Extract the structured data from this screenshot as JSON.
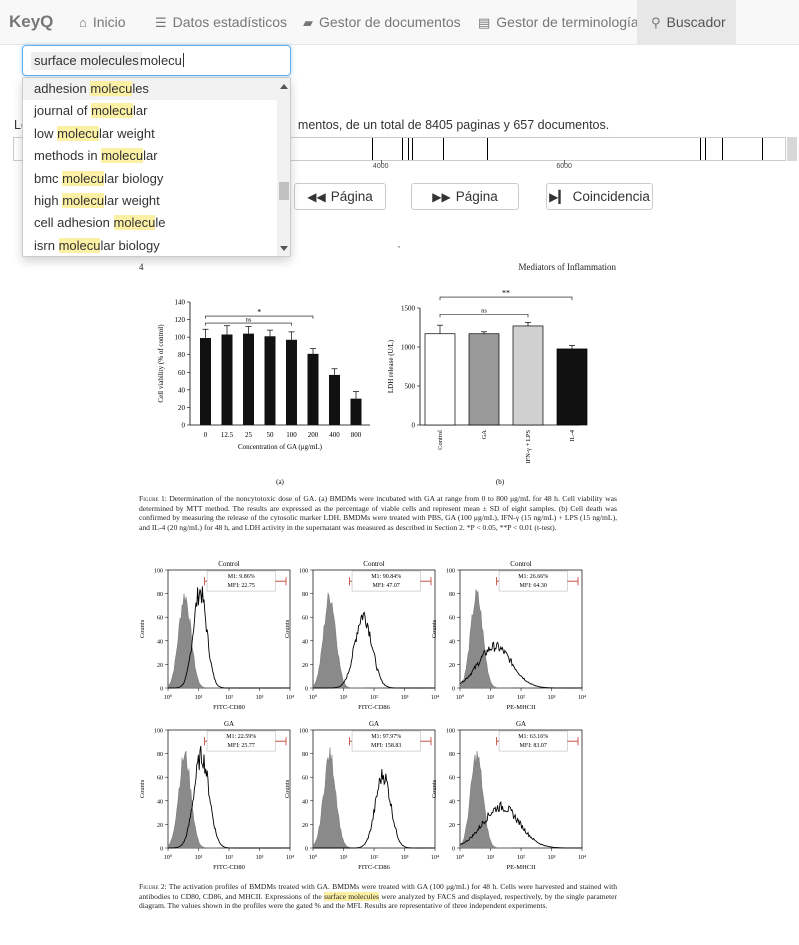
{
  "navbar": {
    "brand": "KeyQ",
    "items": [
      {
        "label": "Inicio",
        "icon": "home-icon",
        "glyph": "⌂"
      },
      {
        "label": "Datos estadísticos",
        "icon": "list-icon",
        "glyph": "☰"
      },
      {
        "label": "Gestor de documentos",
        "icon": "folder-icon",
        "glyph": "▰"
      },
      {
        "label": "Gestor de terminología",
        "icon": "file-icon",
        "glyph": "▤"
      },
      {
        "label": "Buscador",
        "icon": "search-icon",
        "glyph": "⚲",
        "active": true
      }
    ]
  },
  "search": {
    "token": "surface molecules",
    "typed": "molecu"
  },
  "suggestions": [
    {
      "pre": "adhesion ",
      "match": "molecu",
      "post": "les"
    },
    {
      "pre": "journal of ",
      "match": "molecu",
      "post": "lar"
    },
    {
      "pre": "low ",
      "match": "molecu",
      "post": "lar weight"
    },
    {
      "pre": "methods in ",
      "match": "molecu",
      "post": "lar"
    },
    {
      "pre": "bmc ",
      "match": "molecu",
      "post": "lar biology"
    },
    {
      "pre": "high ",
      "match": "molecu",
      "post": "lar weight"
    },
    {
      "pre": "cell adhesion ",
      "match": "molecu",
      "post": "le"
    },
    {
      "pre": "isrn ",
      "match": "molecu",
      "post": "lar biology"
    }
  ],
  "results": {
    "prefix": "Lo",
    "text": "mentos, de un total de 8405 paginas y 657 documentos."
  },
  "timeline": {
    "total_pages": 8405,
    "labels": [
      "4000",
      "6000"
    ],
    "label_pages": [
      4000,
      6000
    ],
    "marks_pages": [
      3900,
      4230,
      4290,
      4340,
      4680,
      5160,
      7480,
      7530,
      7720,
      8150
    ]
  },
  "pager": {
    "prev_label": "Página",
    "next_label": "Página",
    "match_label": "Coincidencia"
  },
  "doc": {
    "mark": ",",
    "page_number": "4",
    "journal": "Mediators of Inflammation",
    "fig1a": {
      "ylabel": "Cell viability (% of control)",
      "xlabel": "Concentration of GA (μg/mL)",
      "sublabel": "(a)",
      "yticks": [
        "0",
        "20",
        "40",
        "60",
        "80",
        "100",
        "120",
        "140"
      ],
      "categories": [
        "0",
        "12.5",
        "25",
        "50",
        "100",
        "200",
        "400",
        "800"
      ],
      "values": [
        99,
        103,
        104,
        101,
        97,
        81,
        57,
        30
      ],
      "errors": [
        10,
        10,
        8,
        7,
        9,
        6,
        7,
        8
      ],
      "ymax": 140,
      "sig_outer": "*",
      "sig_inner": "ns"
    },
    "fig1b": {
      "ylabel": "LDH release (U/L)",
      "sublabel": "(b)",
      "yticks": [
        "0",
        "500",
        "1000",
        "1500"
      ],
      "categories": [
        "Control",
        "GA",
        "IFN-γ + LPS",
        "IL-4"
      ],
      "values": [
        1170,
        1170,
        1270,
        975
      ],
      "errors": [
        110,
        25,
        45,
        45
      ],
      "ymax": 1500,
      "colors": [
        "#ffffff",
        "#9a9a9a",
        "#d0d0d0",
        "#111111"
      ],
      "sig_outer": "**",
      "sig_inner": "ns"
    },
    "fig1_caption": {
      "label": "Figure 1:",
      "text": "Determination of the noncytotoxic dose of GA. (a) BMDMs were incubated with GA at range from 0 to 800 μg/mL for 48 h. Cell viability was determined by MTT method. The results are expressed as the percentage of viable cells and represent mean ± SD of eight samples. (b) Cell death was confirmed by measuring the release of the cytosolic marker LDH. BMDMs were treated with PBS, GA (100 μg/mL), IFN-γ (15 ng/mL) + LPS (15 ng/mL), and IL-4 (20 ng/mL) for 48 h, and LDH activity in the supernatant was measured as described in Section 2. *P < 0.05, **P < 0.01 (t-test)."
    },
    "histograms": [
      {
        "title": "Control",
        "m1": "M1: 9.86%",
        "mfi": "MFI: 22.75",
        "xlabel": "FITC-CD80",
        "peak": 0.82,
        "pos": 1.05,
        "width": 0.22
      },
      {
        "title": "Control",
        "m1": "M1: 90.84%",
        "mfi": "MFI: 47.07",
        "xlabel": "FITC-CD86",
        "peak": 0.62,
        "pos": 1.65,
        "width": 0.28
      },
      {
        "title": "Control",
        "m1": "M1: 26.66%",
        "mfi": "MFI: 64.30",
        "xlabel": "PE-MHCII",
        "peak": 0.35,
        "pos": 1.15,
        "width": 0.55
      },
      {
        "title": "GA",
        "m1": "M1: 22.59%",
        "mfi": "MFI: 25.77",
        "xlabel": "FITC-CD80",
        "peak": 0.78,
        "pos": 1.1,
        "width": 0.25
      },
      {
        "title": "GA",
        "m1": "M1: 97.97%",
        "mfi": "MFI: 158.83",
        "xlabel": "FITC-CD86",
        "peak": 0.62,
        "pos": 2.3,
        "width": 0.25
      },
      {
        "title": "GA",
        "m1": "M1: 63.16%",
        "mfi": "MFI: 83.07",
        "xlabel": "PE-MHCII",
        "peak": 0.35,
        "pos": 1.35,
        "width": 0.6
      }
    ],
    "hist_ylabel": "Counts",
    "hist_yticks": [
      "0",
      "20",
      "40",
      "60",
      "80",
      "100"
    ],
    "hist_xticks": [
      "10⁰",
      "10¹",
      "10²",
      "10³",
      "10⁴"
    ],
    "fig2_caption": {
      "label": "Figure 2:",
      "before": "The activation profiles of BMDMs treated with GA. BMDMs were treated with GA (100 μg/mL) for 48 h. Cells were harvested and stained with antibodies to CD80, CD86, and MHCII. Expressions of the ",
      "highlight": "surface molecules",
      "after": " were analyzed by FACS and displayed, respectively, by the single parameter diagram. The values shown in the profiles were the gated % and the MFI. Results are representative of three independent experiments."
    }
  }
}
